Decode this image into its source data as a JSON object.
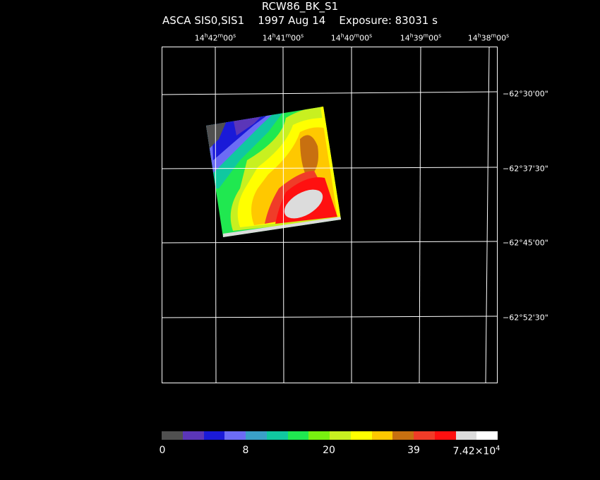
{
  "title": "RCW86_BK_S1",
  "subtitle": {
    "instrument": "ASCA SIS0,SIS1",
    "date": "1997 Aug 14",
    "exposure": "Exposure: 83031 s"
  },
  "ra_labels": [
    {
      "h": "14",
      "m": "42",
      "s": "00"
    },
    {
      "h": "14",
      "m": "41",
      "s": "00"
    },
    {
      "h": "14",
      "m": "40",
      "s": "00"
    },
    {
      "h": "14",
      "m": "39",
      "s": "00"
    },
    {
      "h": "14",
      "m": "38",
      "s": "00"
    }
  ],
  "dec_labels": [
    "−62°30'00\"",
    "−62°37'30\"",
    "−62°45'00\"",
    "−62°52'30\""
  ],
  "colorbar": {
    "colors": [
      "#505050",
      "#5b36b8",
      "#1a1ad8",
      "#6c6cf5",
      "#3aa0c8",
      "#10c8a0",
      "#20e850",
      "#78f010",
      "#c8f020",
      "#ffff00",
      "#ffc800",
      "#c87010",
      "#f03c28",
      "#ff1010",
      "#dcdcdc",
      "#ffffff"
    ],
    "labels": [
      "0",
      "8",
      "20",
      "39"
    ],
    "max_label": {
      "base": "7.42×10",
      "exp": "4"
    }
  }
}
